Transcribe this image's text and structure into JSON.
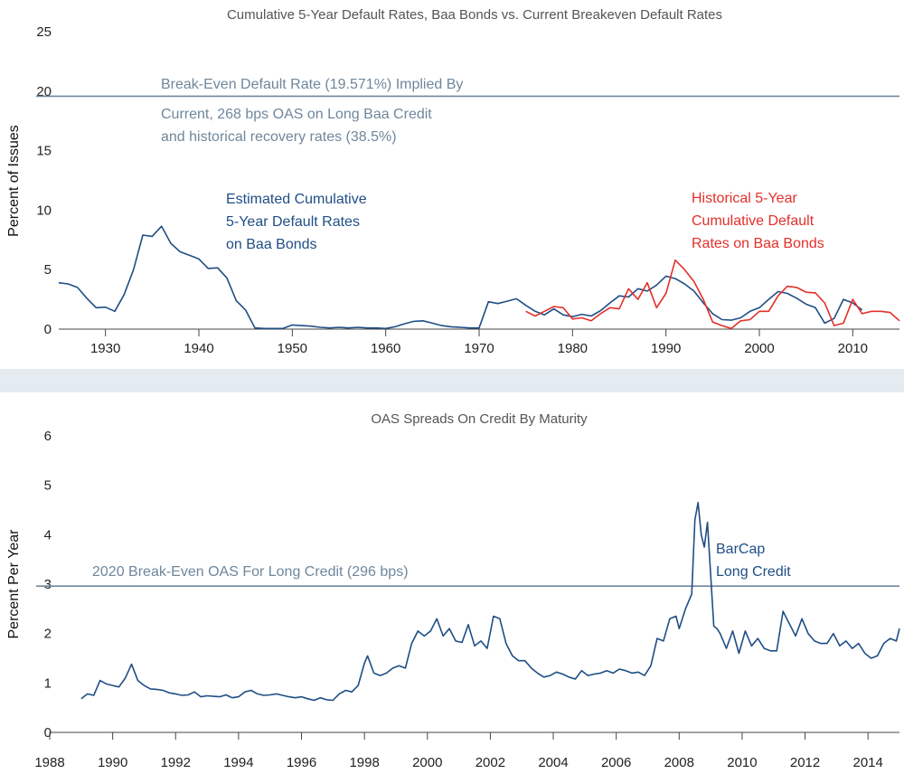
{
  "colors": {
    "blue": "#1f4e84",
    "red": "#e2302a",
    "refline": "#6f879c",
    "ref_text": "#6f879c",
    "separator": "#e4ebf1",
    "axis": "#444444"
  },
  "chart_data": [
    {
      "type": "line",
      "title": "Cumulative 5-Year Default Rates, Baa Bonds vs. Current Breakeven Default Rates",
      "xlabel": "",
      "ylabel": "Percent of Issues",
      "xlim": [
        1925,
        2015
      ],
      "ylim": [
        0,
        25
      ],
      "xticks": [
        "1930",
        "1940",
        "1950",
        "1960",
        "1970",
        "1980",
        "1990",
        "2000",
        "2010"
      ],
      "yticks": [
        "0",
        "5",
        "10",
        "15",
        "20",
        "25"
      ],
      "reference_line": {
        "value": 19.571,
        "label_line1": "Break-Even Default Rate (19.571%) Implied By",
        "label_line2": "Current, 268 bps OAS on Long Baa Credit",
        "label_line3": "and historical recovery rates (38.5%)"
      },
      "series": [
        {
          "name": "Estimated Cumulative 5-Year Default Rates on Baa Bonds",
          "label_lines": [
            "Estimated Cumulative",
            "5-Year Default Rates",
            "on Baa Bonds"
          ],
          "color_key": "blue",
          "x": [
            1925,
            1926,
            1927,
            1928,
            1929,
            1930,
            1931,
            1932,
            1933,
            1934,
            1935,
            1936,
            1937,
            1938,
            1939,
            1940,
            1941,
            1942,
            1943,
            1944,
            1945,
            1946,
            1947,
            1948,
            1949,
            1950,
            1951,
            1952,
            1953,
            1954,
            1955,
            1956,
            1957,
            1958,
            1959,
            1960,
            1961,
            1962,
            1963,
            1964,
            1965,
            1966,
            1967,
            1968,
            1969,
            1970,
            1971,
            1972,
            1973,
            1974,
            1975,
            1976,
            1977,
            1978,
            1979,
            1980,
            1981,
            1982,
            1983,
            1984,
            1985,
            1986,
            1987,
            1988,
            1989,
            1990,
            1991,
            1992,
            1993,
            1994,
            1995,
            1996,
            1997,
            1998,
            1999,
            2000,
            2001,
            2002,
            2003,
            2004,
            2005,
            2006,
            2007,
            2008,
            2009,
            2010,
            2011
          ],
          "y": [
            3.9,
            3.8,
            3.5,
            2.6,
            1.8,
            1.85,
            1.5,
            2.9,
            5.0,
            7.9,
            7.8,
            8.65,
            7.2,
            6.5,
            6.2,
            5.9,
            5.1,
            5.15,
            4.3,
            2.4,
            1.6,
            0.1,
            0.05,
            0.05,
            0.05,
            0.35,
            0.3,
            0.25,
            0.15,
            0.1,
            0.15,
            0.1,
            0.15,
            0.1,
            0.1,
            0.05,
            0.2,
            0.45,
            0.65,
            0.7,
            0.5,
            0.3,
            0.2,
            0.15,
            0.1,
            0.1,
            2.3,
            2.15,
            2.35,
            2.55,
            2.0,
            1.5,
            1.2,
            1.7,
            1.2,
            1.05,
            1.25,
            1.1,
            1.55,
            2.2,
            2.8,
            2.7,
            3.4,
            3.2,
            3.7,
            4.45,
            4.25,
            3.8,
            3.2,
            2.2,
            1.3,
            0.8,
            0.75,
            0.95,
            1.5,
            1.8,
            2.5,
            3.15,
            3.0,
            2.6,
            2.1,
            1.8,
            0.5,
            0.9,
            2.5,
            2.2,
            1.6
          ]
        },
        {
          "name": "Historical 5-Year Cumulative Default Rates on Baa Bonds",
          "label_lines": [
            "Historical 5-Year",
            "Cumulative Default",
            "Rates on Baa Bonds"
          ],
          "color_key": "red",
          "x": [
            1975,
            1976,
            1977,
            1978,
            1979,
            1980,
            1981,
            1982,
            1983,
            1984,
            1985,
            1986,
            1987,
            1988,
            1989,
            1990,
            1991,
            1992,
            1993,
            1994,
            1995,
            1996,
            1997,
            1998,
            1999,
            2000,
            2001,
            2002,
            2003,
            2004,
            2005,
            2006,
            2007,
            2008,
            2009,
            2010,
            2011,
            2012,
            2013,
            2014,
            2015
          ],
          "y": [
            1.5,
            1.1,
            1.5,
            1.9,
            1.8,
            0.85,
            0.95,
            0.7,
            1.3,
            1.8,
            1.7,
            3.4,
            2.5,
            3.9,
            1.8,
            3.0,
            5.8,
            5.0,
            4.0,
            2.5,
            0.6,
            0.3,
            0.05,
            0.7,
            0.8,
            1.5,
            1.5,
            2.8,
            3.6,
            3.5,
            3.1,
            3.05,
            2.2,
            0.3,
            0.5,
            2.5,
            1.3,
            1.5,
            1.5,
            1.4,
            0.7
          ]
        }
      ]
    },
    {
      "type": "line",
      "title": "OAS Spreads On Credit By Maturity",
      "xlabel": "",
      "ylabel": "Percent Per Year",
      "xlim": [
        1988,
        2015
      ],
      "ylim": [
        0,
        6
      ],
      "xticks": [
        "1988",
        "1990",
        "1992",
        "1994",
        "1996",
        "1998",
        "2000",
        "2002",
        "2004",
        "2006",
        "2008",
        "2010",
        "2012",
        "2014"
      ],
      "yticks": [
        "0",
        "1",
        "2",
        "3",
        "4",
        "5",
        "6"
      ],
      "reference_line": {
        "value": 2.96,
        "label": "2020 Break-Even OAS For Long Credit (296 bps)"
      },
      "series": [
        {
          "name": "BarCap Long Credit",
          "label_lines": [
            "BarCap",
            "Long Credit"
          ],
          "color_key": "blue",
          "x": [
            1989.0,
            1989.2,
            1989.4,
            1989.6,
            1989.8,
            1990.0,
            1990.2,
            1990.4,
            1990.6,
            1990.8,
            1991.0,
            1991.2,
            1991.4,
            1991.6,
            1991.8,
            1992.0,
            1992.2,
            1992.4,
            1992.6,
            1992.8,
            1993.0,
            1993.2,
            1993.4,
            1993.6,
            1993.8,
            1994.0,
            1994.2,
            1994.4,
            1994.6,
            1994.8,
            1995.0,
            1995.2,
            1995.4,
            1995.6,
            1995.8,
            1996.0,
            1996.2,
            1996.4,
            1996.6,
            1996.8,
            1997.0,
            1997.2,
            1997.4,
            1997.6,
            1997.8,
            1998.0,
            1998.1,
            1998.3,
            1998.5,
            1998.7,
            1998.9,
            1999.1,
            1999.3,
            1999.5,
            1999.7,
            1999.9,
            2000.1,
            2000.3,
            2000.5,
            2000.7,
            2000.9,
            2001.1,
            2001.3,
            2001.5,
            2001.7,
            2001.9,
            2002.1,
            2002.3,
            2002.5,
            2002.7,
            2002.9,
            2003.1,
            2003.3,
            2003.5,
            2003.7,
            2003.9,
            2004.1,
            2004.3,
            2004.5,
            2004.7,
            2004.9,
            2005.1,
            2005.3,
            2005.5,
            2005.7,
            2005.9,
            2006.1,
            2006.3,
            2006.5,
            2006.7,
            2006.9,
            2007.1,
            2007.3,
            2007.5,
            2007.7,
            2007.9,
            2008.0,
            2008.2,
            2008.4,
            2008.5,
            2008.6,
            2008.7,
            2008.8,
            2008.9,
            2009.0,
            2009.1,
            2009.2,
            2009.3,
            2009.5,
            2009.7,
            2009.9,
            2010.1,
            2010.3,
            2010.5,
            2010.7,
            2010.9,
            2011.1,
            2011.3,
            2011.5,
            2011.7,
            2011.9,
            2012.1,
            2012.3,
            2012.5,
            2012.7,
            2012.9,
            2013.1,
            2013.3,
            2013.5,
            2013.7,
            2013.9,
            2014.1,
            2014.3,
            2014.5,
            2014.7,
            2014.9,
            2015.0
          ],
          "y": [
            0.68,
            0.78,
            0.75,
            1.05,
            0.98,
            0.95,
            0.92,
            1.1,
            1.38,
            1.05,
            0.95,
            0.88,
            0.87,
            0.85,
            0.8,
            0.78,
            0.75,
            0.76,
            0.82,
            0.72,
            0.74,
            0.73,
            0.72,
            0.76,
            0.7,
            0.72,
            0.82,
            0.85,
            0.78,
            0.75,
            0.76,
            0.78,
            0.75,
            0.72,
            0.7,
            0.72,
            0.68,
            0.65,
            0.7,
            0.66,
            0.65,
            0.78,
            0.85,
            0.82,
            0.95,
            1.4,
            1.55,
            1.2,
            1.15,
            1.2,
            1.3,
            1.35,
            1.3,
            1.8,
            2.05,
            1.95,
            2.05,
            2.3,
            1.95,
            2.1,
            1.85,
            1.82,
            2.18,
            1.75,
            1.85,
            1.7,
            2.35,
            2.3,
            1.8,
            1.55,
            1.45,
            1.45,
            1.3,
            1.2,
            1.12,
            1.15,
            1.22,
            1.18,
            1.12,
            1.08,
            1.25,
            1.15,
            1.18,
            1.2,
            1.25,
            1.2,
            1.28,
            1.25,
            1.2,
            1.22,
            1.15,
            1.35,
            1.9,
            1.85,
            2.3,
            2.35,
            2.1,
            2.5,
            2.8,
            4.3,
            4.65,
            4.0,
            3.75,
            4.25,
            3.2,
            2.15,
            2.1,
            2.0,
            1.7,
            2.05,
            1.6,
            2.05,
            1.75,
            1.9,
            1.7,
            1.65,
            1.65,
            2.45,
            2.2,
            1.95,
            2.3,
            2.0,
            1.85,
            1.8,
            1.8,
            2.0,
            1.75,
            1.85,
            1.7,
            1.8,
            1.6,
            1.5,
            1.55,
            1.8,
            1.9,
            1.85,
            2.1
          ]
        }
      ]
    }
  ]
}
